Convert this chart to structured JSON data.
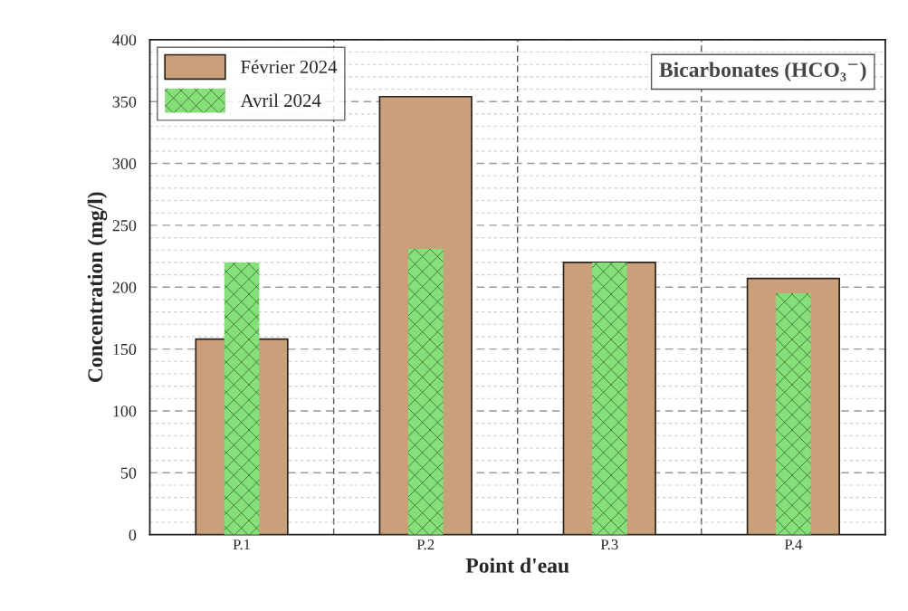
{
  "chart_data": {
    "type": "bar",
    "title": "Bicarbonates (HCO₃$^{−}$)",
    "xlabel": "Point d'eau",
    "ylabel": "Concentration (mg/l)",
    "categories": [
      "P.1",
      "P.2",
      "P.3",
      "P.4"
    ],
    "series": [
      {
        "name": "Février 2024",
        "color": "#c9a07a",
        "values": [
          158,
          354,
          220,
          207
        ]
      },
      {
        "name": "Avril 2024",
        "color": "#86e07a",
        "values": [
          220,
          231,
          220,
          195
        ]
      }
    ],
    "ylim": [
      0,
      400
    ],
    "yticks": [
      0,
      50,
      100,
      150,
      200,
      250,
      300,
      350,
      400
    ],
    "grid": true,
    "legend": "top left"
  }
}
